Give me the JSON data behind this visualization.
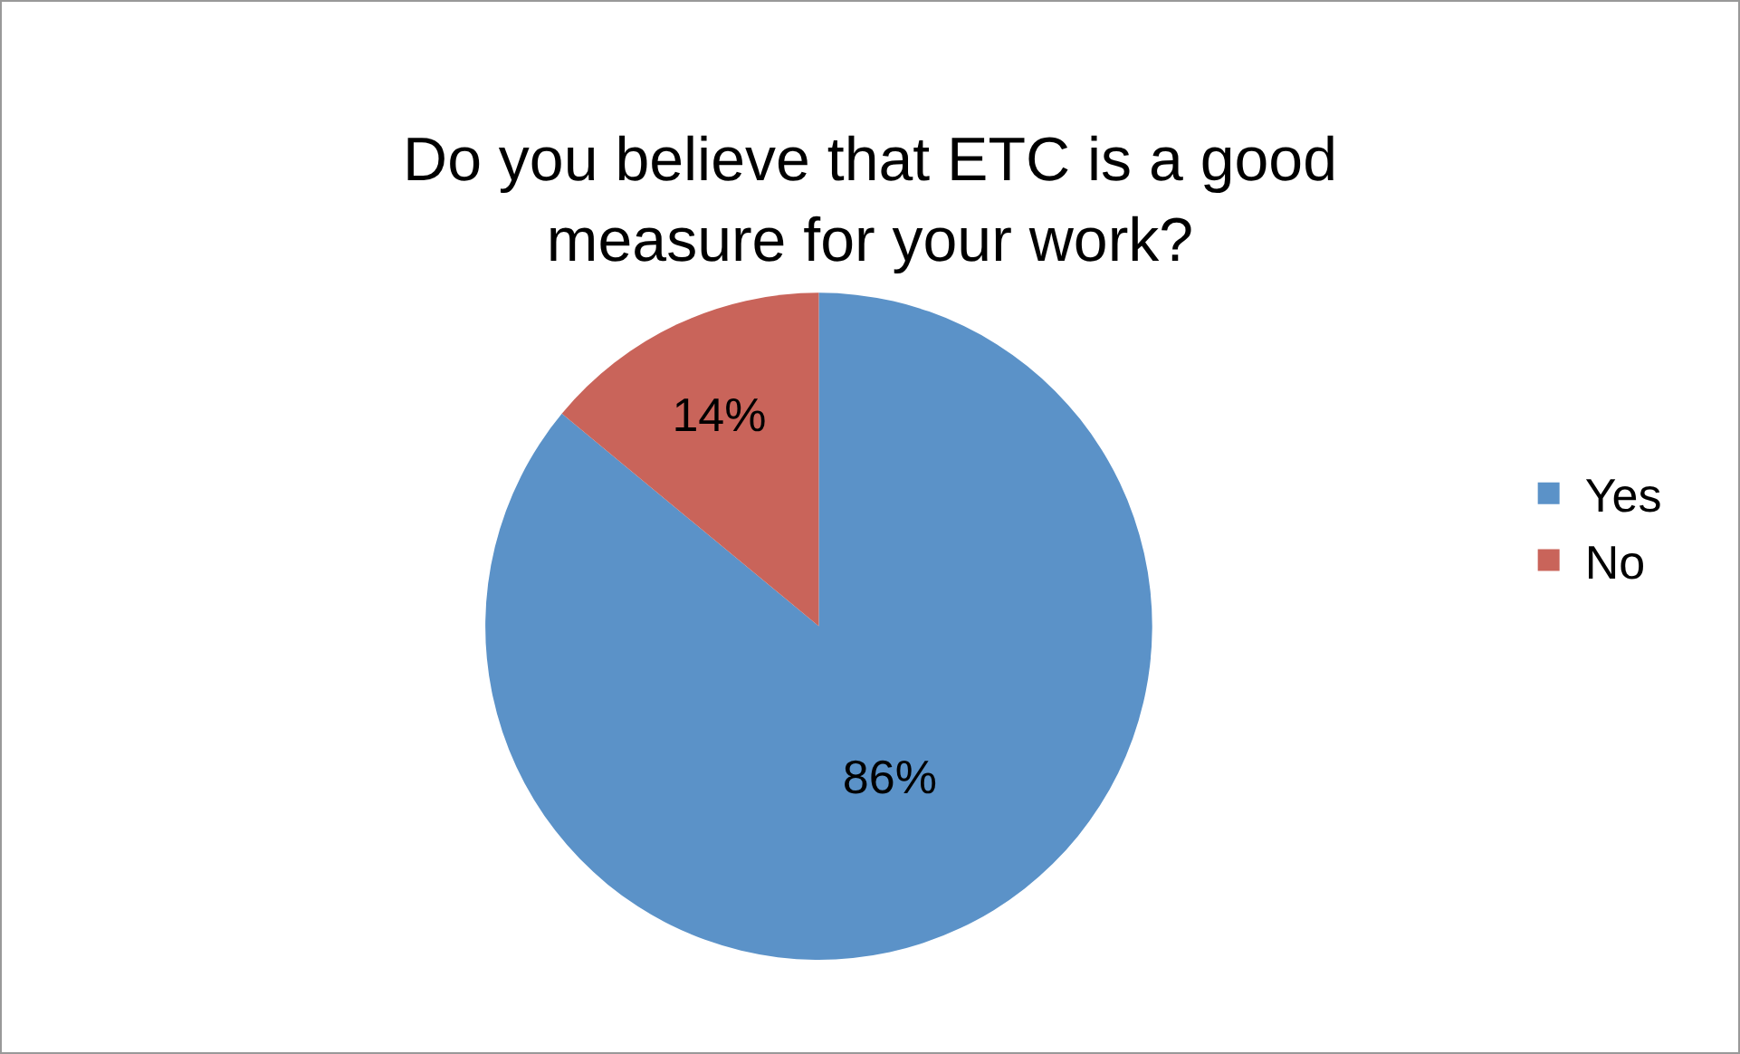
{
  "chart_data": {
    "type": "pie",
    "title": "Do you believe that ETC is a good measure for your work?",
    "categories": [
      "Yes",
      "No"
    ],
    "values": [
      86,
      14
    ],
    "colors": [
      "#5b92c8",
      "#c9645a"
    ],
    "value_labels": [
      "86%",
      "14%"
    ],
    "legend": "right"
  }
}
